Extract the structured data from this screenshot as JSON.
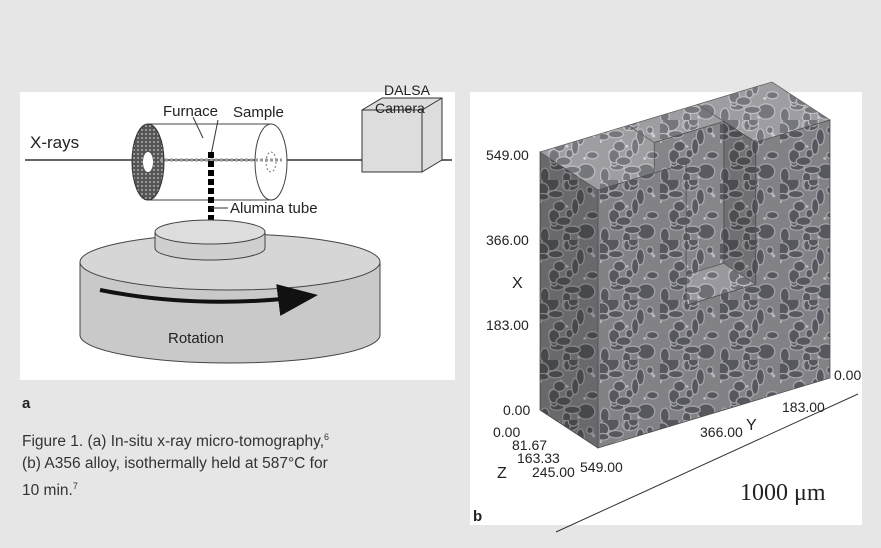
{
  "panel_a": {
    "label": "a",
    "furnace": "Furnace",
    "sample": "Sample",
    "camera": [
      "DALSA",
      "Camera"
    ],
    "xrays": "X-rays",
    "tube": "Alumina tube",
    "rotation": "Rotation"
  },
  "caption": {
    "lines": [
      {
        "text": "Figure 1. (a) In-situ x-ray micro-tomography,",
        "sup": "6"
      },
      {
        "text": "(b) A356 alloy, isothermally held at 587°C for"
      },
      {
        "text": "10 min.",
        "sup": "7"
      }
    ]
  },
  "panel_b": {
    "label": "b",
    "x_axis": {
      "title": "X",
      "ticks": [
        "549.00",
        "366.00",
        "183.00",
        "0.00"
      ]
    },
    "z_axis": {
      "title": "Z",
      "ticks": [
        "0.00",
        "81.67",
        "163.33",
        "245.00"
      ]
    },
    "y_axis": {
      "title": "Y",
      "ticks": [
        "549.00",
        "366.00",
        "183.00",
        "0.00"
      ]
    },
    "scale": "1000 μm"
  }
}
